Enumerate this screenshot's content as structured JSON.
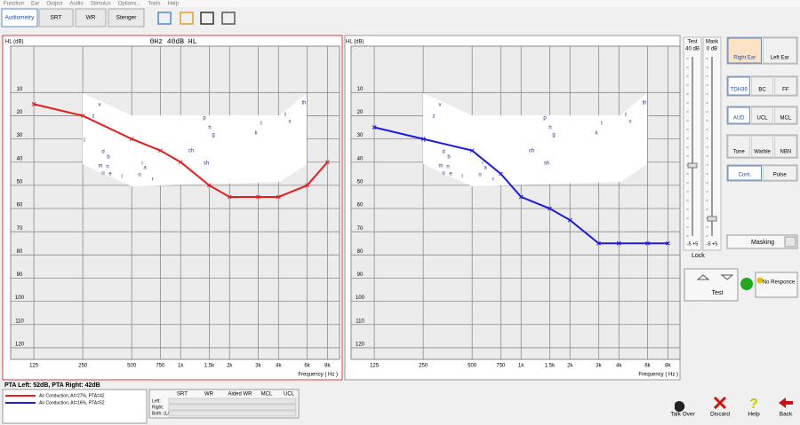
{
  "menu": [
    "Function",
    "Ear",
    "Output",
    "Audio",
    "Stimulus",
    "Options...",
    "Tools",
    "Help"
  ],
  "tabs": [
    "Audiometry",
    "SRT",
    "WR",
    "Stenger"
  ],
  "speech_sounds": [
    "v",
    "z",
    "j",
    "d",
    "b",
    "m",
    "n",
    "u",
    "e",
    "l",
    "i",
    "a",
    "o",
    "r",
    "p",
    "h",
    "g",
    "ch",
    "sh",
    "k",
    "t",
    "f",
    "s",
    "th"
  ],
  "chart_data": [
    {
      "type": "line",
      "header": "0Hz  40dB HL",
      "y_label": "HL (dB)",
      "x_label": "Frequency ( Hz )",
      "x": [
        125,
        250,
        500,
        750,
        1000,
        1500,
        2000,
        3000,
        4000,
        6000,
        8000
      ],
      "xlim": [
        90,
        9500
      ],
      "x_log": true,
      "xticks": [
        125,
        250,
        500,
        750,
        {
          "value": 1000,
          "label": "1k"
        },
        {
          "value": 1500,
          "label": "1.5k"
        },
        {
          "value": 2000,
          "label": "2k"
        },
        {
          "value": 3000,
          "label": "3k"
        },
        {
          "value": 4000,
          "label": "4k"
        },
        {
          "value": 6000,
          "label": "6k"
        },
        {
          "value": 8000,
          "label": "8k"
        }
      ],
      "ylim": [
        -10,
        125
      ],
      "y_inverted": true,
      "yticks": [
        10,
        20,
        30,
        40,
        50,
        60,
        70,
        80,
        90,
        100,
        110,
        120
      ],
      "grid": true,
      "series": [
        {
          "name": "Air Conduction, AI=27%, PTA=42",
          "color": "#e81c1c",
          "values": [
            15,
            20,
            30,
            35,
            40,
            50,
            55,
            55,
            55,
            50,
            40
          ]
        }
      ]
    },
    {
      "type": "line",
      "y_label": "HL (dB)",
      "x_label": "Frequency ( Hz )",
      "x": [
        125,
        250,
        500,
        750,
        1000,
        1500,
        2000,
        3000,
        4000,
        6000,
        8000
      ],
      "xlim": [
        90,
        9500
      ],
      "x_log": true,
      "xticks": [
        125,
        250,
        500,
        750,
        {
          "value": 1000,
          "label": "1k"
        },
        {
          "value": 1500,
          "label": "1.5k"
        },
        {
          "value": 2000,
          "label": "2k"
        },
        {
          "value": 3000,
          "label": "3k"
        },
        {
          "value": 4000,
          "label": "4k"
        },
        {
          "value": 6000,
          "label": "6k"
        },
        {
          "value": 8000,
          "label": "8k"
        }
      ],
      "ylim": [
        -10,
        125
      ],
      "y_inverted": true,
      "yticks": [
        10,
        20,
        30,
        40,
        50,
        60,
        70,
        80,
        90,
        100,
        110,
        120
      ],
      "grid": true,
      "series": [
        {
          "name": "Air Conduction, AI=16%, PTA=52",
          "color": "#1c1ce0",
          "values": [
            25,
            30,
            35,
            45,
            55,
            60,
            65,
            75,
            75,
            75,
            75
          ]
        }
      ]
    }
  ],
  "sliders": [
    {
      "label": "Test",
      "level": "40 dB",
      "range": "-5 +5"
    },
    {
      "label": "Mask",
      "level": "0 dB",
      "range": "-5 +5"
    }
  ],
  "lock": "Lock",
  "ears": [
    "Right Ear",
    "Left Ear"
  ],
  "transducers": [
    "TDH39",
    "BC",
    "FF"
  ],
  "modes": [
    "AUD",
    "UCL",
    "MCL"
  ],
  "stimulus": [
    "Tone",
    "Warble",
    "NBN"
  ],
  "presentation": [
    "Cont.",
    "Pulse"
  ],
  "masking": "Masking",
  "test": "Test",
  "no_response": "No Responce",
  "pta": "PTA Left: 52dB, PTA Right: 42dB",
  "table": {
    "headers": [
      "SRT",
      "WR",
      "Aided WR",
      "MCL",
      "UCL"
    ],
    "rows": [
      "Left:",
      "Right:",
      "Both: (L/R)"
    ]
  },
  "actions": [
    "Talk Over",
    "Discard",
    "Help",
    "Back"
  ]
}
